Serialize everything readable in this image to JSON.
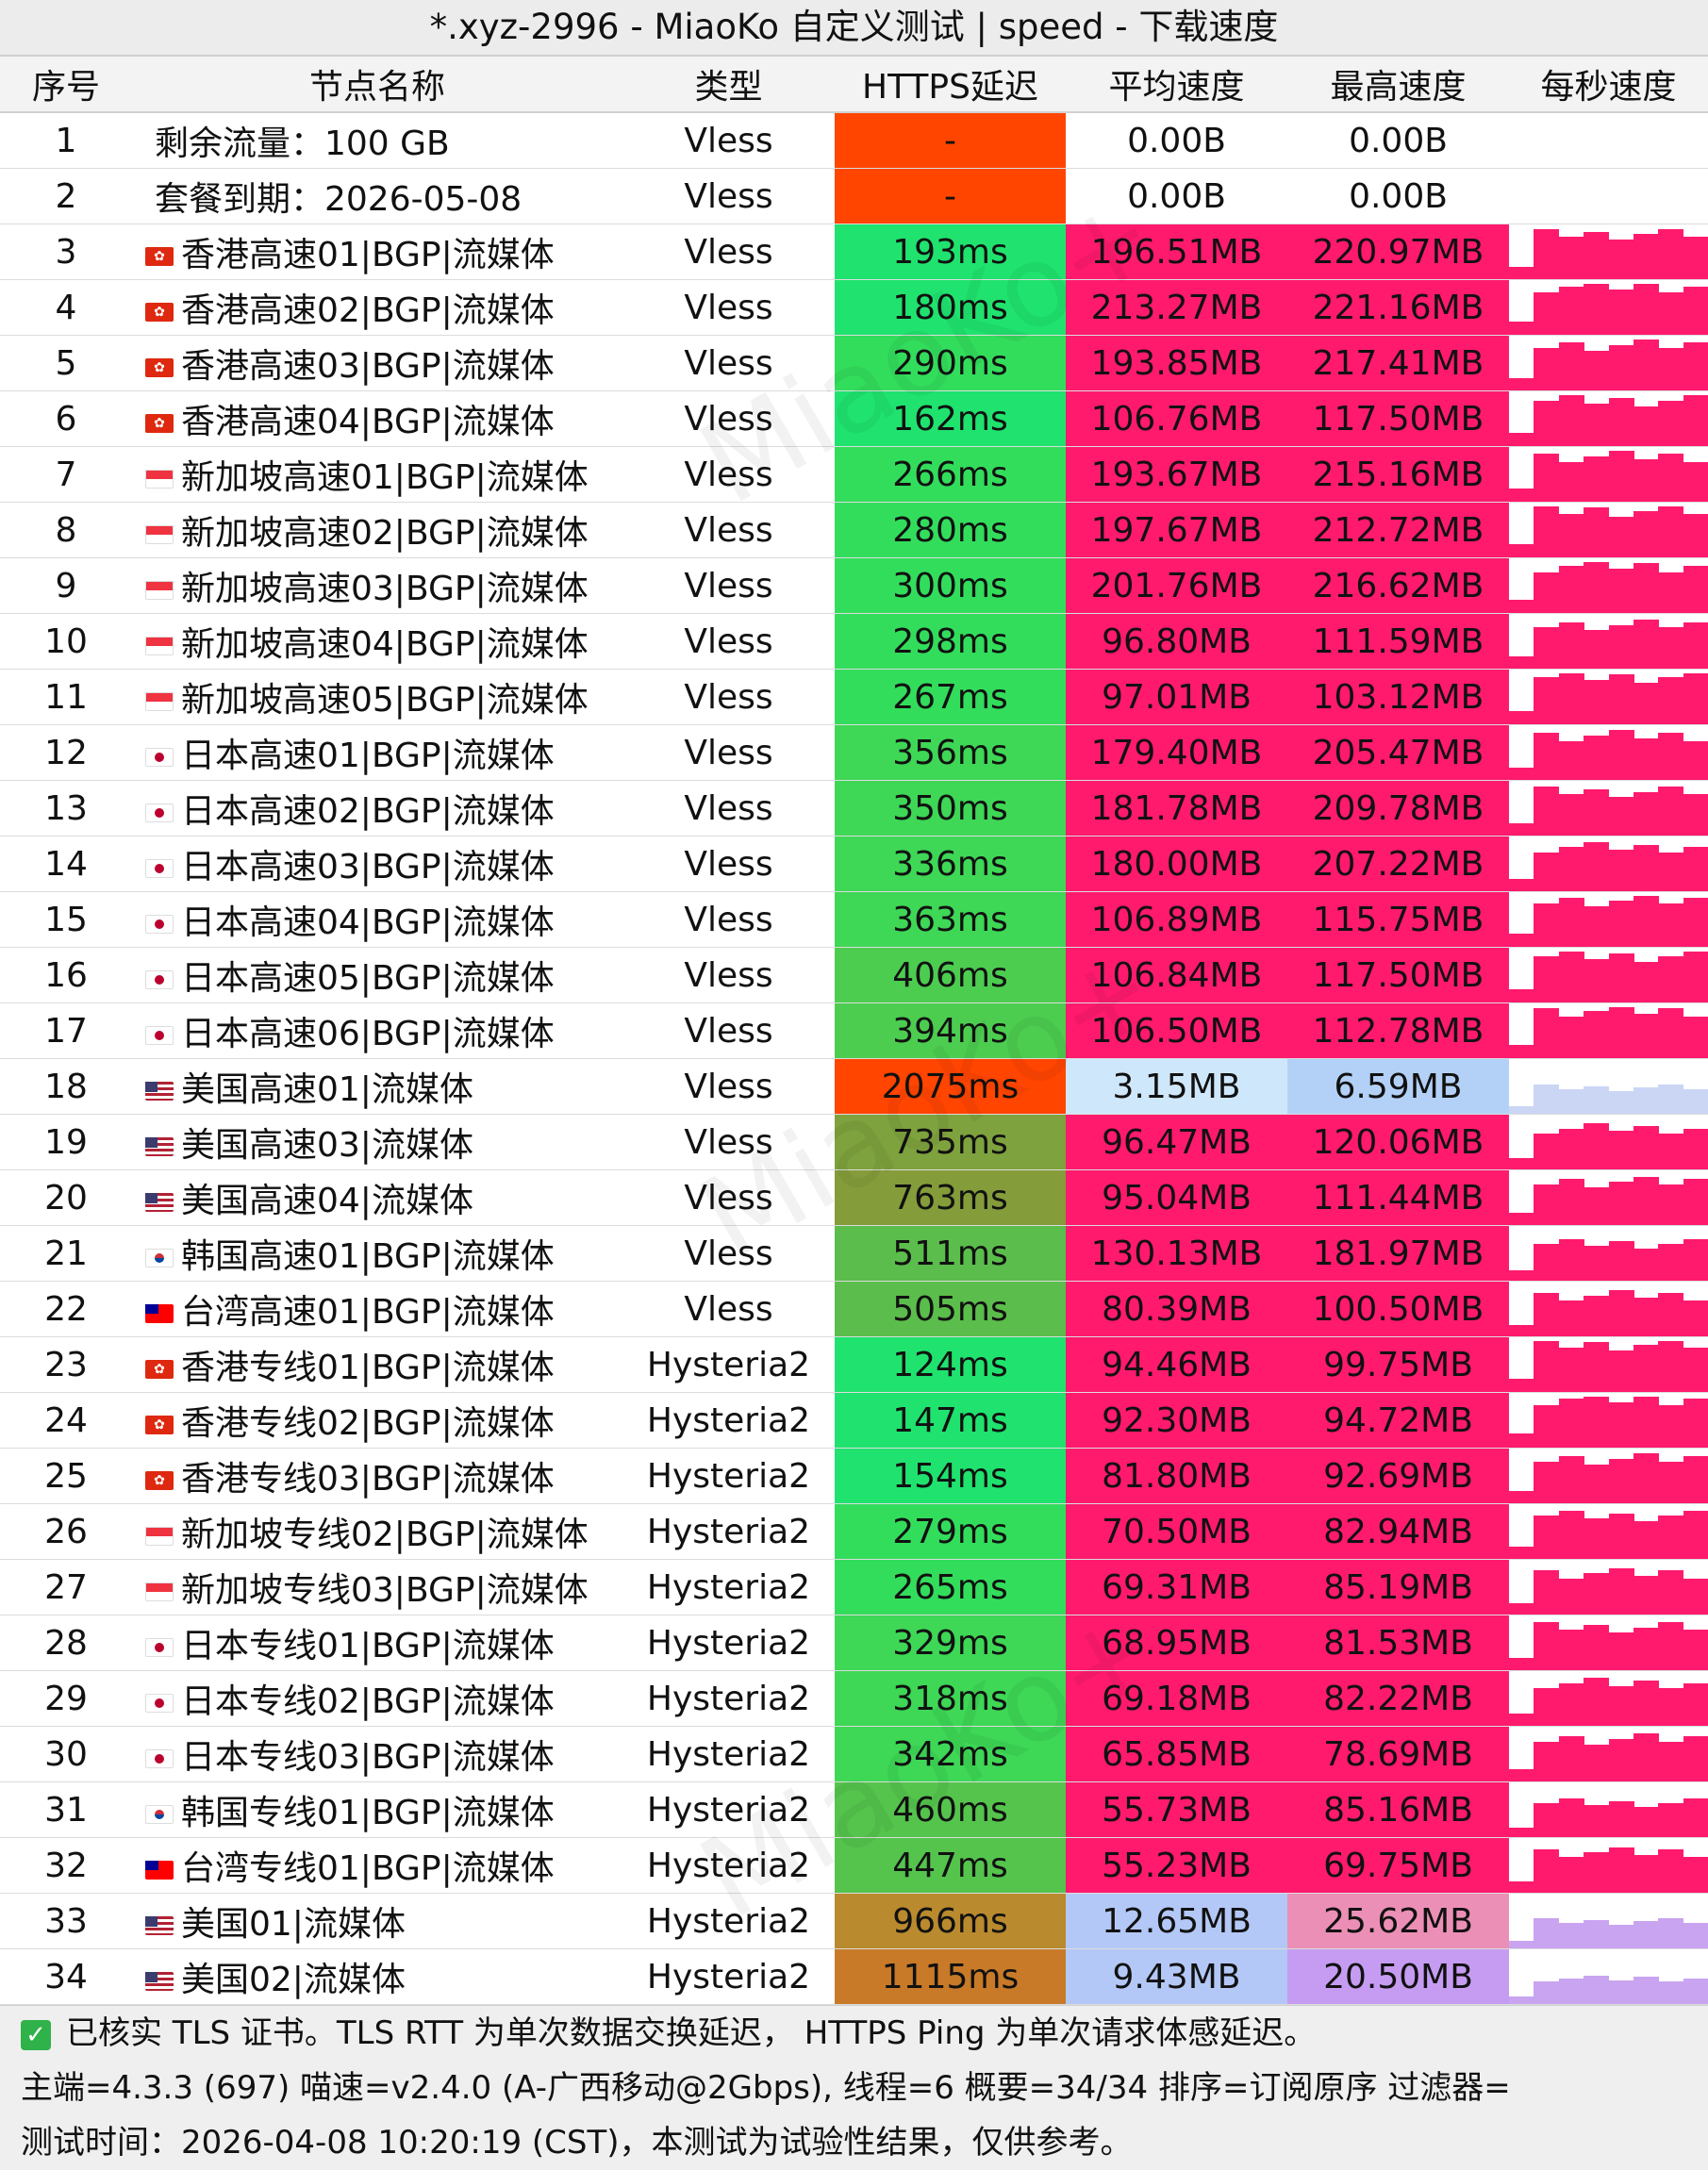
{
  "title": "*.xyz-2996 - MiaoKo 自定义测试 | speed - 下载速度",
  "watermark": "MiaoKo+",
  "headers": [
    "序号",
    "节点名称",
    "类型",
    "HTTPS延迟",
    "平均速度",
    "最高速度",
    "每秒速度"
  ],
  "flag_icons": {
    "hk": "hong-kong-flag-icon",
    "sg": "singapore-flag-icon",
    "jp": "japan-flag-icon",
    "us": "usa-flag-icon",
    "kr": "korea-flag-icon",
    "tw": "taiwan-flag-icon"
  },
  "rows": [
    {
      "id": "1",
      "flag": "",
      "name": "剩余流量：100 GB",
      "type": "Vless",
      "latency": "-",
      "avg": "0.00B",
      "max": "0.00B",
      "lat_color": "#ff4500",
      "avg_color": "#ffffff",
      "max_color": "#ffffff"
    },
    {
      "id": "2",
      "flag": "",
      "name": "套餐到期：2026-05-08",
      "type": "Vless",
      "latency": "-",
      "avg": "0.00B",
      "max": "0.00B",
      "lat_color": "#ff4500",
      "avg_color": "#ffffff",
      "max_color": "#ffffff"
    },
    {
      "id": "3",
      "flag": "hk",
      "name": "香港高速01|BGP|流媒体",
      "type": "Vless",
      "latency": "193ms",
      "avg": "196.51MB",
      "max": "220.97MB",
      "lat_color": "#1fe36e",
      "avg_color": "#ff1a6e",
      "max_color": "#ff1a6e"
    },
    {
      "id": "4",
      "flag": "hk",
      "name": "香港高速02|BGP|流媒体",
      "type": "Vless",
      "latency": "180ms",
      "avg": "213.27MB",
      "max": "221.16MB",
      "lat_color": "#1fe36e",
      "avg_color": "#ff1a6e",
      "max_color": "#ff1a6e"
    },
    {
      "id": "5",
      "flag": "hk",
      "name": "香港高速03|BGP|流媒体",
      "type": "Vless",
      "latency": "290ms",
      "avg": "193.85MB",
      "max": "217.41MB",
      "lat_color": "#33dd5c",
      "avg_color": "#ff1a6e",
      "max_color": "#ff1a6e"
    },
    {
      "id": "6",
      "flag": "hk",
      "name": "香港高速04|BGP|流媒体",
      "type": "Vless",
      "latency": "162ms",
      "avg": "106.76MB",
      "max": "117.50MB",
      "lat_color": "#1fe36e",
      "avg_color": "#ff1a6e",
      "max_color": "#ff1a6e"
    },
    {
      "id": "7",
      "flag": "sg",
      "name": "新加坡高速01|BGP|流媒体",
      "type": "Vless",
      "latency": "266ms",
      "avg": "193.67MB",
      "max": "215.16MB",
      "lat_color": "#33dd5c",
      "avg_color": "#ff1a6e",
      "max_color": "#ff1a6e"
    },
    {
      "id": "8",
      "flag": "sg",
      "name": "新加坡高速02|BGP|流媒体",
      "type": "Vless",
      "latency": "280ms",
      "avg": "197.67MB",
      "max": "212.72MB",
      "lat_color": "#33dd5c",
      "avg_color": "#ff1a6e",
      "max_color": "#ff1a6e"
    },
    {
      "id": "9",
      "flag": "sg",
      "name": "新加坡高速03|BGP|流媒体",
      "type": "Vless",
      "latency": "300ms",
      "avg": "201.76MB",
      "max": "216.62MB",
      "lat_color": "#33dd5c",
      "avg_color": "#ff1a6e",
      "max_color": "#ff1a6e"
    },
    {
      "id": "10",
      "flag": "sg",
      "name": "新加坡高速04|BGP|流媒体",
      "type": "Vless",
      "latency": "298ms",
      "avg": "96.80MB",
      "max": "111.59MB",
      "lat_color": "#33dd5c",
      "avg_color": "#ff1a6e",
      "max_color": "#ff1a6e"
    },
    {
      "id": "11",
      "flag": "sg",
      "name": "新加坡高速05|BGP|流媒体",
      "type": "Vless",
      "latency": "267ms",
      "avg": "97.01MB",
      "max": "103.12MB",
      "lat_color": "#33dd5c",
      "avg_color": "#ff1a6e",
      "max_color": "#ff1a6e"
    },
    {
      "id": "12",
      "flag": "jp",
      "name": "日本高速01|BGP|流媒体",
      "type": "Vless",
      "latency": "356ms",
      "avg": "179.40MB",
      "max": "205.47MB",
      "lat_color": "#3ed756",
      "avg_color": "#ff1a6e",
      "max_color": "#ff1a6e"
    },
    {
      "id": "13",
      "flag": "jp",
      "name": "日本高速02|BGP|流媒体",
      "type": "Vless",
      "latency": "350ms",
      "avg": "181.78MB",
      "max": "209.78MB",
      "lat_color": "#3ed756",
      "avg_color": "#ff1a6e",
      "max_color": "#ff1a6e"
    },
    {
      "id": "14",
      "flag": "jp",
      "name": "日本高速03|BGP|流媒体",
      "type": "Vless",
      "latency": "336ms",
      "avg": "180.00MB",
      "max": "207.22MB",
      "lat_color": "#3ed756",
      "avg_color": "#ff1a6e",
      "max_color": "#ff1a6e"
    },
    {
      "id": "15",
      "flag": "jp",
      "name": "日本高速04|BGP|流媒体",
      "type": "Vless",
      "latency": "363ms",
      "avg": "106.89MB",
      "max": "115.75MB",
      "lat_color": "#3ed756",
      "avg_color": "#ff1a6e",
      "max_color": "#ff1a6e"
    },
    {
      "id": "16",
      "flag": "jp",
      "name": "日本高速05|BGP|流媒体",
      "type": "Vless",
      "latency": "406ms",
      "avg": "106.84MB",
      "max": "117.50MB",
      "lat_color": "#4ccd50",
      "avg_color": "#ff1a6e",
      "max_color": "#ff1a6e"
    },
    {
      "id": "17",
      "flag": "jp",
      "name": "日本高速06|BGP|流媒体",
      "type": "Vless",
      "latency": "394ms",
      "avg": "106.50MB",
      "max": "112.78MB",
      "lat_color": "#4ccd50",
      "avg_color": "#ff1a6e",
      "max_color": "#ff1a6e"
    },
    {
      "id": "18",
      "flag": "us",
      "name": "美国高速01|流媒体",
      "type": "Vless",
      "latency": "2075ms",
      "avg": "3.15MB",
      "max": "6.59MB",
      "lat_color": "#ff4500",
      "avg_color": "#cfe7fb",
      "max_color": "#b3d1f7"
    },
    {
      "id": "19",
      "flag": "us",
      "name": "美国高速03|流媒体",
      "type": "Vless",
      "latency": "735ms",
      "avg": "96.47MB",
      "max": "120.06MB",
      "lat_color": "#7ea23d",
      "avg_color": "#ff1a6e",
      "max_color": "#ff1a6e"
    },
    {
      "id": "20",
      "flag": "us",
      "name": "美国高速04|流媒体",
      "type": "Vless",
      "latency": "763ms",
      "avg": "95.04MB",
      "max": "111.44MB",
      "lat_color": "#849c3a",
      "avg_color": "#ff1a6e",
      "max_color": "#ff1a6e"
    },
    {
      "id": "21",
      "flag": "kr",
      "name": "韩国高速01|BGP|流媒体",
      "type": "Vless",
      "latency": "511ms",
      "avg": "130.13MB",
      "max": "181.97MB",
      "lat_color": "#5bbd4b",
      "avg_color": "#ff1a6e",
      "max_color": "#ff1a6e"
    },
    {
      "id": "22",
      "flag": "tw",
      "name": "台湾高速01|BGP|流媒体",
      "type": "Vless",
      "latency": "505ms",
      "avg": "80.39MB",
      "max": "100.50MB",
      "lat_color": "#5bbd4b",
      "avg_color": "#ff1a6e",
      "max_color": "#ff1a6e"
    },
    {
      "id": "23",
      "flag": "hk",
      "name": "香港专线01|BGP|流媒体",
      "type": "Hysteria2",
      "latency": "124ms",
      "avg": "94.46MB",
      "max": "99.75MB",
      "lat_color": "#1fe36e",
      "avg_color": "#ff1a6e",
      "max_color": "#ff1a6e"
    },
    {
      "id": "24",
      "flag": "hk",
      "name": "香港专线02|BGP|流媒体",
      "type": "Hysteria2",
      "latency": "147ms",
      "avg": "92.30MB",
      "max": "94.72MB",
      "lat_color": "#1fe36e",
      "avg_color": "#ff1a6e",
      "max_color": "#ff1a6e"
    },
    {
      "id": "25",
      "flag": "hk",
      "name": "香港专线03|BGP|流媒体",
      "type": "Hysteria2",
      "latency": "154ms",
      "avg": "81.80MB",
      "max": "92.69MB",
      "lat_color": "#1fe36e",
      "avg_color": "#ff1a6e",
      "max_color": "#ff1a6e"
    },
    {
      "id": "26",
      "flag": "sg",
      "name": "新加坡专线02|BGP|流媒体",
      "type": "Hysteria2",
      "latency": "279ms",
      "avg": "70.50MB",
      "max": "82.94MB",
      "lat_color": "#33dd5c",
      "avg_color": "#ff1a6e",
      "max_color": "#ff1a6e"
    },
    {
      "id": "27",
      "flag": "sg",
      "name": "新加坡专线03|BGP|流媒体",
      "type": "Hysteria2",
      "latency": "265ms",
      "avg": "69.31MB",
      "max": "85.19MB",
      "lat_color": "#33dd5c",
      "avg_color": "#ff1a6e",
      "max_color": "#ff1a6e"
    },
    {
      "id": "28",
      "flag": "jp",
      "name": "日本专线01|BGP|流媒体",
      "type": "Hysteria2",
      "latency": "329ms",
      "avg": "68.95MB",
      "max": "81.53MB",
      "lat_color": "#3ed756",
      "avg_color": "#ff1a6e",
      "max_color": "#ff1a6e"
    },
    {
      "id": "29",
      "flag": "jp",
      "name": "日本专线02|BGP|流媒体",
      "type": "Hysteria2",
      "latency": "318ms",
      "avg": "69.18MB",
      "max": "82.22MB",
      "lat_color": "#3ed756",
      "avg_color": "#ff1a6e",
      "max_color": "#ff1a6e"
    },
    {
      "id": "30",
      "flag": "jp",
      "name": "日本专线03|BGP|流媒体",
      "type": "Hysteria2",
      "latency": "342ms",
      "avg": "65.85MB",
      "max": "78.69MB",
      "lat_color": "#3ed756",
      "avg_color": "#ff1a6e",
      "max_color": "#ff1a6e"
    },
    {
      "id": "31",
      "flag": "kr",
      "name": "韩国专线01|BGP|流媒体",
      "type": "Hysteria2",
      "latency": "460ms",
      "avg": "55.73MB",
      "max": "85.16MB",
      "lat_color": "#55c44d",
      "avg_color": "#ff1a6e",
      "max_color": "#ff1a6e"
    },
    {
      "id": "32",
      "flag": "tw",
      "name": "台湾专线01|BGP|流媒体",
      "type": "Hysteria2",
      "latency": "447ms",
      "avg": "55.23MB",
      "max": "69.75MB",
      "lat_color": "#55c44d",
      "avg_color": "#ff1a6e",
      "max_color": "#ff1a6e"
    },
    {
      "id": "33",
      "flag": "us",
      "name": "美国01|流媒体",
      "type": "Hysteria2",
      "latency": "966ms",
      "avg": "12.65MB",
      "max": "25.62MB",
      "lat_color": "#b98a2e",
      "avg_color": "#b3c8f6",
      "max_color": "#ec8fb6"
    },
    {
      "id": "34",
      "flag": "us",
      "name": "美国02|流媒体",
      "type": "Hysteria2",
      "latency": "1115ms",
      "avg": "9.43MB",
      "max": "20.50MB",
      "lat_color": "#c87a28",
      "avg_color": "#b3c8f6",
      "max_color": "#c69cf2"
    }
  ],
  "footer": {
    "tls_note": "已核实 TLS 证书。TLS RTT 为单次数据交换延迟， HTTPS Ping 为单次请求体感延迟。",
    "info": "主端=4.3.3 (697) 喵速=v2.4.0 (A-广西移动@2Gbps), 线程=6 概要=34/34 排序=订阅原序 过滤器=",
    "time": "测试时间：2026-04-08 10:20:19 (CST)，本测试为试验性结果，仅供参考。"
  },
  "colors": {
    "flag_hk": "#de2910",
    "flag_sg": "#ef3340",
    "flag_jp": "#bc002d",
    "flag_us": "#3c3b6e",
    "flag_kr": "#0047a0",
    "flag_tw": "#fe0000",
    "spark_high": "#ff1a6e",
    "spark_low": "#cbd6f5",
    "spark_mid": "#c9a4f0"
  }
}
